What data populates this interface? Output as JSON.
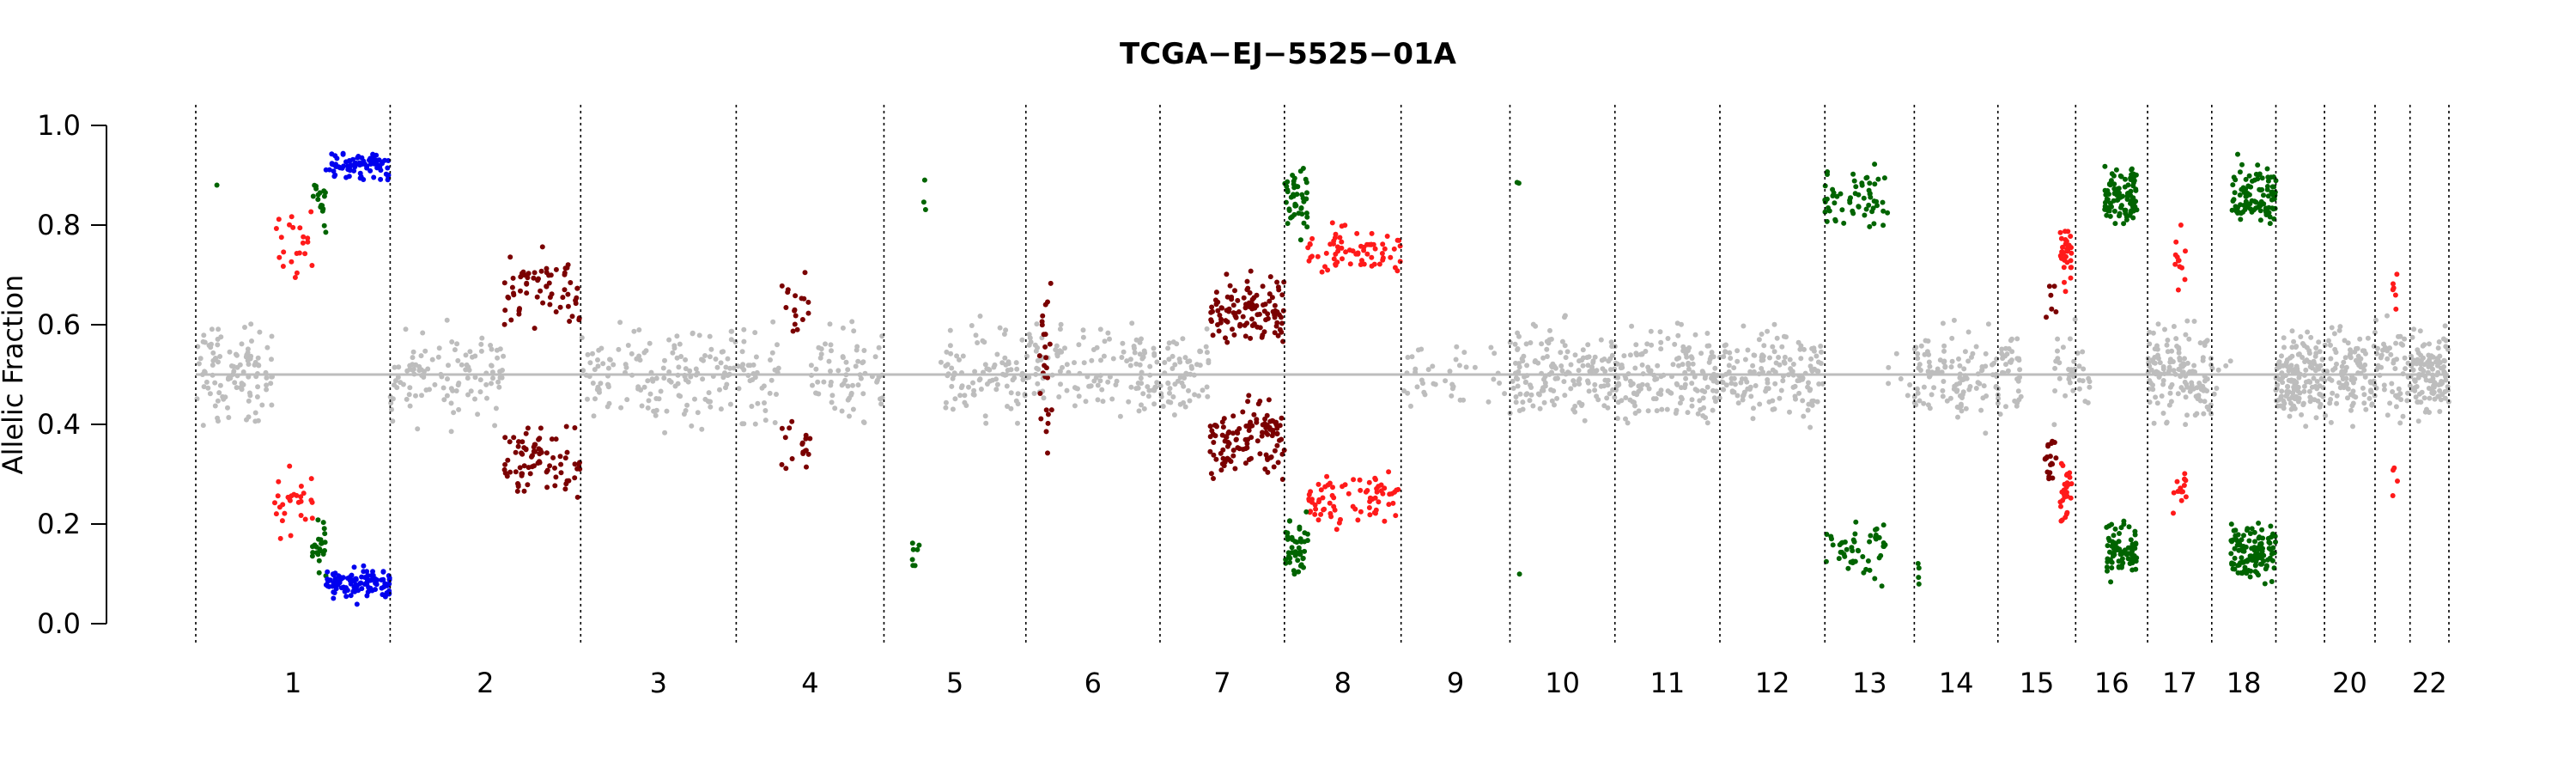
{
  "chart_data": {
    "type": "scatter",
    "title": "TCGA−EJ−5525−01A",
    "xlabel": "",
    "ylabel": "Allelic Fraction",
    "ylim": [
      0.0,
      1.0
    ],
    "yticks": [
      "0.0",
      "0.2",
      "0.4",
      "0.6",
      "0.8",
      "1.0"
    ],
    "reference_line": 0.5,
    "grid": false,
    "colors": {
      "neutral": "#bdbdbd",
      "darkred": "#7a0000",
      "red": "#ff1a1a",
      "green": "#006400",
      "blue": "#0000ee",
      "reference": "#bdbdbd"
    },
    "chromosomes": [
      "1",
      "2",
      "3",
      "4",
      "5",
      "6",
      "7",
      "8",
      "9",
      "10",
      "11",
      "12",
      "13",
      "14",
      "15",
      "16",
      "17",
      "18",
      "19",
      "20",
      "21",
      "22"
    ],
    "chromosome_labels": [
      "1",
      "2",
      "3",
      "4",
      "5",
      "6",
      "7",
      "8",
      "9",
      "10",
      "11",
      "12",
      "13",
      "14",
      "15",
      "16",
      "17",
      "18",
      "",
      "20",
      "",
      "22"
    ],
    "chromosome_relative_widths": [
      1.0,
      0.98,
      0.8,
      0.76,
      0.73,
      0.69,
      0.64,
      0.6,
      0.56,
      0.54,
      0.54,
      0.54,
      0.46,
      0.43,
      0.4,
      0.37,
      0.33,
      0.33,
      0.25,
      0.26,
      0.18,
      0.2
    ],
    "series": [
      {
        "name": "",
        "color": "neutral",
        "segments": [
          {
            "chr": 1,
            "from": 0.0,
            "to": 0.4,
            "af": 0.5,
            "spread": 0.08,
            "n": 110
          },
          {
            "chr": 2,
            "from": 0.0,
            "to": 0.6,
            "af": 0.5,
            "spread": 0.08,
            "n": 110
          },
          {
            "chr": 3,
            "from": 0.0,
            "to": 1.0,
            "af": 0.5,
            "spread": 0.08,
            "n": 150
          },
          {
            "chr": 4,
            "from": 0.0,
            "to": 0.3,
            "af": 0.5,
            "spread": 0.08,
            "n": 40
          },
          {
            "chr": 4,
            "from": 0.5,
            "to": 1.0,
            "af": 0.5,
            "spread": 0.08,
            "n": 70
          },
          {
            "chr": 5,
            "from": 0.4,
            "to": 1.0,
            "af": 0.5,
            "spread": 0.08,
            "n": 90
          },
          {
            "chr": 6,
            "from": 0.0,
            "to": 1.0,
            "af": 0.5,
            "spread": 0.08,
            "n": 130
          },
          {
            "chr": 7,
            "from": 0.0,
            "to": 0.4,
            "af": 0.5,
            "spread": 0.08,
            "n": 60
          },
          {
            "chr": 9,
            "from": 0.0,
            "to": 1.0,
            "af": 0.5,
            "spread": 0.06,
            "n": 40
          },
          {
            "chr": 10,
            "from": 0.0,
            "to": 1.0,
            "af": 0.5,
            "spread": 0.08,
            "n": 160
          },
          {
            "chr": 11,
            "from": 0.0,
            "to": 1.0,
            "af": 0.5,
            "spread": 0.08,
            "n": 170
          },
          {
            "chr": 12,
            "from": 0.0,
            "to": 1.0,
            "af": 0.5,
            "spread": 0.08,
            "n": 150
          },
          {
            "chr": 13,
            "from": 0.7,
            "to": 1.0,
            "af": 0.5,
            "spread": 0.05,
            "n": 6
          },
          {
            "chr": 14,
            "from": 0.0,
            "to": 1.0,
            "af": 0.5,
            "spread": 0.08,
            "n": 110
          },
          {
            "chr": 15,
            "from": 0.0,
            "to": 0.3,
            "af": 0.5,
            "spread": 0.08,
            "n": 40
          },
          {
            "chr": 15,
            "from": 0.7,
            "to": 1.0,
            "af": 0.5,
            "spread": 0.08,
            "n": 25
          },
          {
            "chr": 16,
            "from": 0.0,
            "to": 0.2,
            "af": 0.5,
            "spread": 0.06,
            "n": 12
          },
          {
            "chr": 17,
            "from": 0.0,
            "to": 1.0,
            "af": 0.5,
            "spread": 0.08,
            "n": 140
          },
          {
            "chr": 18,
            "from": 0.0,
            "to": 0.3,
            "af": 0.5,
            "spread": 0.05,
            "n": 6
          },
          {
            "chr": 19,
            "from": 0.0,
            "to": 1.0,
            "af": 0.5,
            "spread": 0.07,
            "n": 150
          },
          {
            "chr": 20,
            "from": 0.0,
            "to": 1.0,
            "af": 0.5,
            "spread": 0.08,
            "n": 100
          },
          {
            "chr": 21,
            "from": 0.0,
            "to": 1.0,
            "af": 0.5,
            "spread": 0.08,
            "n": 50
          },
          {
            "chr": 22,
            "from": 0.0,
            "to": 1.0,
            "af": 0.5,
            "spread": 0.07,
            "n": 120
          }
        ]
      },
      {
        "name": "",
        "color": "red",
        "segments": [
          {
            "chr": 1,
            "from": 0.4,
            "to": 0.6,
            "af": 0.76,
            "spread": 0.05,
            "n": 50,
            "mirror": true
          },
          {
            "chr": 8,
            "from": 0.2,
            "to": 1.0,
            "af": 0.75,
            "spread": 0.04,
            "n": 150,
            "mirror": true
          },
          {
            "chr": 15,
            "from": 0.8,
            "to": 0.95,
            "af": 0.74,
            "spread": 0.05,
            "n": 60,
            "mirror": true
          },
          {
            "chr": 17,
            "from": 0.4,
            "to": 0.6,
            "af": 0.73,
            "spread": 0.05,
            "n": 25,
            "mirror": true
          },
          {
            "chr": 21,
            "from": 0.5,
            "to": 0.65,
            "af": 0.7,
            "spread": 0.06,
            "n": 10,
            "mirror": true
          }
        ]
      },
      {
        "name": "",
        "color": "darkred",
        "segments": [
          {
            "chr": 2,
            "from": 0.6,
            "to": 1.0,
            "af": 0.67,
            "spread": 0.06,
            "n": 150,
            "mirror": true
          },
          {
            "chr": 4,
            "from": 0.3,
            "to": 0.5,
            "af": 0.64,
            "spread": 0.05,
            "n": 35,
            "mirror": true
          },
          {
            "chr": 6,
            "from": 0.1,
            "to": 0.2,
            "af": 0.6,
            "spread": 0.12,
            "n": 25,
            "mirror": true
          },
          {
            "chr": 7,
            "from": 0.4,
            "to": 1.0,
            "af": 0.63,
            "spread": 0.06,
            "n": 230,
            "mirror": true
          },
          {
            "chr": 15,
            "from": 0.6,
            "to": 0.75,
            "af": 0.67,
            "spread": 0.05,
            "n": 25,
            "mirror": true
          }
        ]
      },
      {
        "name": "",
        "color": "green",
        "segments": [
          {
            "chr": 1,
            "from": 0.1,
            "to": 0.15,
            "af": 0.88,
            "spread": 0.005,
            "n": 1,
            "mirror": true
          },
          {
            "chr": 1,
            "from": 0.6,
            "to": 0.67,
            "af": 0.85,
            "spread": 0.05,
            "n": 40,
            "mirror": true
          },
          {
            "chr": 5,
            "from": 0.2,
            "to": 0.3,
            "af": 0.86,
            "spread": 0.05,
            "n": 10,
            "mirror": true
          },
          {
            "chr": 8,
            "from": 0.0,
            "to": 0.2,
            "af": 0.85,
            "spread": 0.05,
            "n": 90,
            "mirror": true
          },
          {
            "chr": 10,
            "from": 0.0,
            "to": 0.1,
            "af": 0.88,
            "spread": 0.03,
            "n": 3,
            "mirror": true
          },
          {
            "chr": 13,
            "from": 0.0,
            "to": 0.7,
            "af": 0.85,
            "spread": 0.05,
            "n": 110,
            "mirror": true
          },
          {
            "chr": 14,
            "from": 0.0,
            "to": 0.1,
            "af": 0.9,
            "spread": 0.03,
            "n": 4,
            "mirror": true
          },
          {
            "chr": 16,
            "from": 0.4,
            "to": 0.85,
            "af": 0.86,
            "spread": 0.05,
            "n": 170,
            "mirror": true
          },
          {
            "chr": 18,
            "from": 0.3,
            "to": 1.0,
            "af": 0.86,
            "spread": 0.05,
            "n": 220,
            "mirror": true
          }
        ]
      },
      {
        "name": "",
        "color": "blue",
        "segments": [
          {
            "chr": 1,
            "from": 0.67,
            "to": 1.0,
            "af": 0.92,
            "spread": 0.025,
            "n": 190,
            "mirror": true
          }
        ]
      }
    ]
  }
}
